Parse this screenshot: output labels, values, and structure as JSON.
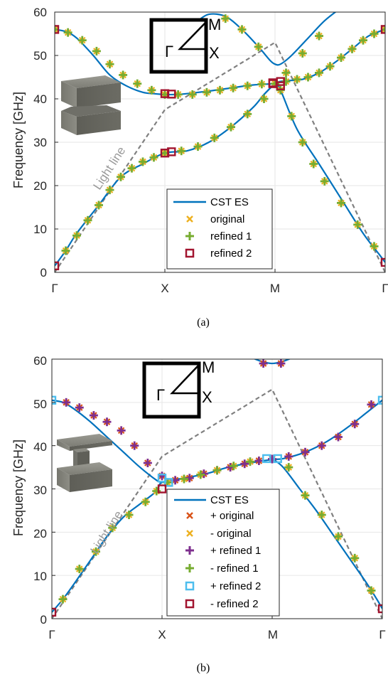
{
  "colors": {
    "band_line": "#0072BD",
    "light_line": "#808080",
    "original_plus": "#D95319",
    "original_minus": "#EDB120",
    "refined1_plus": "#7E2F8E",
    "refined1_minus": "#77AC30",
    "refined2_plus": "#4DBEEE",
    "refined2_minus": "#A2142F",
    "grid": "#e6e6e6",
    "axis": "#262626"
  },
  "chart_data": [
    {
      "type": "line",
      "caption": "(a)",
      "ylabel": "Frequency [GHz]",
      "xlabel": "",
      "xticks": [
        "Γ",
        "X",
        "M",
        "Γ"
      ],
      "ylim": [
        0,
        60
      ],
      "yticks": [
        "0",
        "10",
        "20",
        "30",
        "40",
        "50",
        "60"
      ],
      "grid": true,
      "legend_position": "bottom-right",
      "inset_labels": {
        "gamma": "Γ",
        "x": "X",
        "m": "M"
      },
      "light_line_label": "Light line",
      "light_line": {
        "x": [
          0,
          1,
          2,
          3
        ],
        "y": [
          0,
          37.5,
          53,
          0
        ]
      },
      "series": [
        {
          "name": "CST ES",
          "style": "line",
          "bands": [
            {
              "x": [
                0,
                0.1,
                0.2,
                0.35,
                0.5,
                0.65,
                0.8,
                0.9,
                1.0,
                1.1,
                1.2,
                1.4,
                1.6,
                1.8,
                2.0,
                2.03,
                2.05
              ],
              "y": [
                56,
                55.5,
                54,
                50,
                45.5,
                43,
                41.5,
                41.2,
                41,
                41,
                41.2,
                41.8,
                42.5,
                43.2,
                43.5,
                43.8,
                44
              ]
            },
            {
              "x": [
                0,
                0.1,
                0.2,
                0.4,
                0.6,
                0.8,
                1.0,
                1.2,
                1.4,
                1.6,
                1.8,
                1.9,
                2.0,
                2.03
              ],
              "y": [
                1.5,
                5,
                9,
                15.5,
                22,
                25,
                27.5,
                28,
                30,
                33.5,
                38,
                41,
                43.5,
                43.8
              ]
            },
            {
              "x": [
                1.3,
                1.4,
                1.55,
                1.7,
                1.85,
                1.95,
                2.0,
                2.05,
                2.15,
                2.3,
                2.45,
                2.6
              ],
              "y": [
                58,
                59.5,
                59,
                56,
                52,
                49,
                48,
                48,
                50,
                54,
                58,
                61
              ]
            },
            {
              "x": [
                1.9,
                2.0,
                2.05,
                2.1,
                2.25,
                2.4,
                2.55,
                2.7,
                2.85,
                3.0
              ],
              "y": [
                41,
                43.5,
                44,
                44.2,
                44.5,
                46,
                48.5,
                51.5,
                54.5,
                56
              ]
            },
            {
              "x": [
                2.0,
                2.05,
                2.2,
                2.4,
                2.6,
                2.8,
                2.95,
                3.0
              ],
              "y": [
                43.5,
                42,
                33,
                25,
                17,
                9,
                4,
                2.3
              ]
            }
          ]
        },
        {
          "name": "original",
          "style": "x",
          "color": "#EDB120",
          "x": [
            0,
            0.12,
            0.25,
            0.38,
            0.5,
            0.62,
            0.75,
            0.88,
            1.0,
            1.12,
            1.25,
            1.38,
            1.5,
            1.62,
            1.75,
            1.88,
            2.0,
            2.1,
            2.2,
            2.3,
            2.4,
            2.5,
            2.6,
            2.7,
            2.8,
            2.9,
            3.0,
            0.1,
            0.2,
            0.3,
            0.4,
            0.5,
            0.6,
            0.7,
            0.8,
            0.9,
            1.0,
            1.15,
            1.3,
            1.45,
            1.6,
            1.75,
            1.9,
            2.05,
            2.15,
            2.25,
            2.35,
            2.45,
            2.6,
            2.75,
            2.9,
            1.55,
            1.7,
            1.85,
            2.1,
            2.25,
            2.4
          ],
          "y": [
            56,
            55.3,
            53.5,
            51,
            48,
            45.5,
            43.5,
            42,
            41,
            41,
            41,
            41.5,
            42,
            42.5,
            43,
            43.4,
            43.5,
            44,
            44.5,
            45,
            46,
            47.5,
            49.5,
            51.5,
            53.5,
            55,
            56,
            5,
            8.5,
            12,
            15.5,
            19,
            22,
            24,
            25.5,
            26.5,
            27.5,
            28,
            29,
            31,
            33.5,
            36.5,
            40,
            42,
            36,
            30,
            25,
            21,
            16,
            11,
            6,
            58.5,
            56,
            52,
            46,
            50.5,
            54.5
          ]
        },
        {
          "name": "refined 1",
          "style": "plus",
          "color": "#77AC30",
          "x": [
            0,
            0.12,
            0.25,
            0.38,
            0.5,
            0.62,
            0.75,
            0.88,
            1.0,
            1.12,
            1.25,
            1.38,
            1.5,
            1.62,
            1.75,
            1.88,
            2.0,
            2.1,
            2.2,
            2.3,
            2.4,
            2.5,
            2.6,
            2.7,
            2.8,
            2.9,
            3.0,
            0.1,
            0.2,
            0.3,
            0.4,
            0.5,
            0.6,
            0.7,
            0.8,
            0.9,
            1.0,
            1.15,
            1.3,
            1.45,
            1.6,
            1.75,
            1.9,
            2.05,
            2.15,
            2.25,
            2.35,
            2.45,
            2.6,
            2.75,
            2.9,
            1.55,
            1.7,
            1.85,
            2.1,
            2.25,
            2.4
          ],
          "y": [
            56,
            55.3,
            53.5,
            51,
            48,
            45.5,
            43.5,
            42,
            41,
            41,
            41,
            41.5,
            42,
            42.5,
            43,
            43.4,
            43.5,
            44,
            44.5,
            45,
            46,
            47.5,
            49.5,
            51.5,
            53.5,
            55,
            56,
            5,
            8.5,
            12,
            15.5,
            19,
            22,
            24,
            25.5,
            26.5,
            27.5,
            28,
            29,
            31,
            33.5,
            36.5,
            40,
            42,
            36,
            30,
            25,
            21,
            16,
            11,
            6,
            58.5,
            56,
            52,
            46,
            50.5,
            54.5
          ]
        },
        {
          "name": "refined 2",
          "style": "square",
          "color": "#A2142F",
          "x": [
            0,
            0,
            1.0,
            1.06,
            1.0,
            1.06,
            1.98,
            2.05,
            1.98,
            2.05,
            3.0,
            3.0
          ],
          "y": [
            56,
            1.5,
            41.2,
            41.1,
            27.5,
            27.8,
            43.5,
            44,
            43.7,
            43,
            56,
            2.3
          ]
        }
      ]
    },
    {
      "type": "line",
      "caption": "(b)",
      "ylabel": "Frequency [GHz]",
      "xlabel": "",
      "xticks": [
        "Γ",
        "X",
        "M",
        "Γ"
      ],
      "ylim": [
        0,
        60
      ],
      "yticks": [
        "0",
        "10",
        "20",
        "30",
        "40",
        "50",
        "60"
      ],
      "grid": true,
      "legend_position": "bottom-right",
      "inset_labels": {
        "gamma": "Γ",
        "x": "X",
        "m": "M"
      },
      "light_line_label": "Light line",
      "light_line": {
        "x": [
          0,
          1,
          2,
          3
        ],
        "y": [
          0,
          37.5,
          53,
          0
        ]
      },
      "series": [
        {
          "name": "CST ES",
          "style": "line",
          "bands": [
            {
              "x": [
                0,
                0.1,
                0.2,
                0.35,
                0.5,
                0.65,
                0.8,
                0.95,
                1.0
              ],
              "y": [
                50.5,
                50,
                48.5,
                45.5,
                42,
                38.5,
                35,
                32,
                31.5
              ]
            },
            {
              "x": [
                0,
                0.1,
                0.2,
                0.35,
                0.5,
                0.65,
                0.8,
                0.95,
                1.0,
                1.2,
                1.4,
                1.6,
                1.8,
                2.0,
                2.1,
                2.3,
                2.5,
                2.7,
                2.9,
                3.0
              ],
              "y": [
                1.5,
                4.5,
                8,
                13.5,
                19,
                23.5,
                26.5,
                29.5,
                31.5,
                32.5,
                33.5,
                35,
                36,
                36.8,
                37,
                38.5,
                41,
                44.5,
                48.5,
                50.5
              ]
            },
            {
              "x": [
                1.8,
                1.9,
                2.0,
                2.1,
                2.2
              ],
              "y": [
                60.5,
                59.5,
                59,
                59.5,
                60.5
              ]
            },
            {
              "x": [
                2.0,
                2.1,
                2.25,
                2.4,
                2.55,
                2.7,
                2.85,
                2.95,
                3.0
              ],
              "y": [
                37,
                35,
                30,
                25,
                19.5,
                14,
                8.5,
                4.5,
                2.3
              ]
            }
          ]
        },
        {
          "name": "+ original",
          "style": "x",
          "color": "#D95319",
          "x": [
            0.13,
            0.25,
            0.38,
            0.5,
            0.63,
            0.75,
            0.87,
            1.0,
            1.12,
            1.25,
            1.38,
            1.5,
            1.62,
            1.75,
            1.88,
            2.0,
            1.92,
            2.08,
            2.15,
            2.3,
            2.45,
            2.6,
            2.75,
            2.9
          ],
          "y": [
            50,
            48.8,
            47,
            45.5,
            43.5,
            40,
            36,
            33,
            32,
            32.5,
            33.5,
            34.3,
            35,
            35.8,
            36.5,
            36.9,
            59,
            59,
            37.5,
            38.5,
            40,
            42,
            45,
            49.5
          ]
        },
        {
          "name": "- original",
          "style": "x",
          "color": "#EDB120",
          "x": [
            0.1,
            0.25,
            0.4,
            0.55,
            0.7,
            0.85,
            0.95,
            1.05,
            1.2,
            1.35,
            1.5,
            1.65,
            1.8,
            2.15,
            2.3,
            2.45,
            2.6,
            2.75,
            2.9
          ],
          "y": [
            4.5,
            11.5,
            15.5,
            21,
            24,
            27,
            29.5,
            31.5,
            32.3,
            33.3,
            34.3,
            35.3,
            36.3,
            35,
            28.5,
            24,
            19,
            14,
            6.5
          ]
        },
        {
          "name": "+ refined 1",
          "style": "plus",
          "color": "#7E2F8E",
          "x": [
            0.13,
            0.25,
            0.38,
            0.5,
            0.63,
            0.75,
            0.87,
            1.0,
            1.12,
            1.25,
            1.38,
            1.5,
            1.62,
            1.75,
            1.88,
            2.0,
            1.92,
            2.08,
            2.15,
            2.3,
            2.45,
            2.6,
            2.75,
            2.9
          ],
          "y": [
            50,
            48.8,
            47,
            45.5,
            43.5,
            40,
            36,
            33,
            32,
            32.5,
            33.5,
            34.3,
            35,
            35.8,
            36.5,
            36.9,
            59,
            59,
            37.5,
            38.5,
            40,
            42,
            45,
            49.5
          ]
        },
        {
          "name": "- refined 1",
          "style": "plus",
          "color": "#77AC30",
          "x": [
            0.1,
            0.25,
            0.4,
            0.55,
            0.7,
            0.85,
            0.95,
            1.05,
            1.2,
            1.35,
            1.5,
            1.65,
            1.8,
            2.15,
            2.3,
            2.45,
            2.6,
            2.75,
            2.9
          ],
          "y": [
            4.5,
            11.5,
            15.5,
            21,
            24,
            27,
            29.5,
            31.5,
            32.3,
            33.3,
            34.3,
            35.3,
            36.3,
            35,
            28.5,
            24,
            19,
            14,
            6.5
          ]
        },
        {
          "name": "+ refined 2",
          "style": "square",
          "color": "#4DBEEE",
          "x": [
            0,
            1.0,
            1.06,
            1.95,
            2.05,
            3.0
          ],
          "y": [
            50.5,
            32.5,
            31.5,
            37,
            37,
            50.5
          ]
        },
        {
          "name": "- refined 2",
          "style": "square",
          "color": "#A2142F",
          "x": [
            0,
            1.0,
            3.0
          ],
          "y": [
            1.5,
            30,
            2.3
          ]
        }
      ]
    }
  ]
}
